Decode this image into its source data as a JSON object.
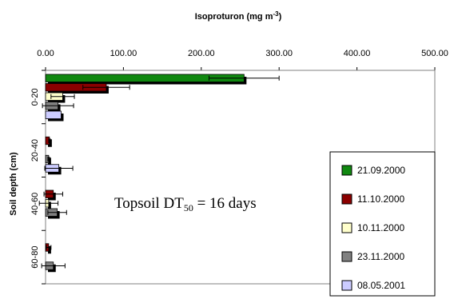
{
  "chart_data": {
    "type": "bar",
    "orientation": "horizontal",
    "title": "Isoproturon (mg m-3)",
    "title_unit_parts": {
      "base": "Isoproturon (mg m",
      "sup": "-3",
      "tail": ")"
    },
    "xlabel": "",
    "ylabel": "Soil depth (cm)",
    "xlim": [
      0,
      500
    ],
    "x_tick_labels": [
      "0.00",
      "100.00",
      "200.00",
      "300.00",
      "400.00",
      "500.00"
    ],
    "x_ticks": [
      0,
      100,
      200,
      300,
      400,
      500
    ],
    "x_axis_position": "top",
    "categories": [
      "0-20",
      "20-40",
      "40-60",
      "60-80"
    ],
    "legend_position": "bottom-right",
    "annotation": {
      "prefix": "Topsoil DT",
      "sub": "50",
      "suffix": " = 16 days"
    },
    "series": [
      {
        "name": "21.09.2000",
        "color": "#108810",
        "values": [
          255,
          0,
          0,
          0
        ],
        "errors": [
          45,
          0,
          0,
          0
        ]
      },
      {
        "name": "11.10.2000",
        "color": "#8b0000",
        "values": [
          78,
          5,
          10,
          4
        ],
        "errors": [
          30,
          1,
          12,
          3
        ]
      },
      {
        "name": "10.11.2000",
        "color": "#ffffcc",
        "values": [
          22,
          0,
          4,
          0
        ],
        "errors": [
          15,
          0,
          12,
          0
        ]
      },
      {
        "name": "23.11.2000",
        "color": "#808080",
        "values": [
          16,
          4,
          15,
          10
        ],
        "errors": [
          20,
          1,
          12,
          15
        ]
      },
      {
        "name": "08.05.2001",
        "color": "#ccccff",
        "values": [
          20,
          17,
          0,
          0
        ],
        "errors": [
          0,
          18,
          0,
          0
        ]
      }
    ]
  }
}
